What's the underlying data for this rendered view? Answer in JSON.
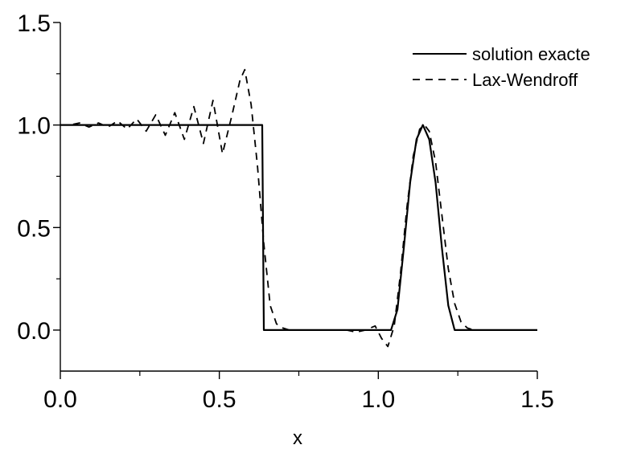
{
  "chart_data": {
    "type": "line",
    "title": "",
    "xlabel": "x",
    "ylabel": "",
    "xlim": [
      0.0,
      1.5
    ],
    "ylim": [
      -0.2,
      1.5
    ],
    "xticks": [
      "0.0",
      "0.5",
      "1.0",
      "1.5"
    ],
    "yticks": [
      "0.0",
      "0.5",
      "1.0",
      "1.5"
    ],
    "grid": false,
    "legend_position": "top-right",
    "series": [
      {
        "name": "solution exacte",
        "style": "solid",
        "color": "#000000",
        "x": [
          0.0,
          0.635,
          0.64,
          1.04,
          1.06,
          1.08,
          1.1,
          1.12,
          1.14,
          1.16,
          1.18,
          1.2,
          1.22,
          1.24,
          1.5
        ],
        "y": [
          1.0,
          1.0,
          0.0,
          0.0,
          0.1,
          0.4,
          0.72,
          0.93,
          1.0,
          0.93,
          0.72,
          0.4,
          0.12,
          0.0,
          0.0
        ]
      },
      {
        "name": "Lax-Wendroff",
        "style": "dashed",
        "color": "#000000",
        "x": [
          0.0,
          0.03,
          0.06,
          0.09,
          0.12,
          0.15,
          0.18,
          0.21,
          0.24,
          0.27,
          0.3,
          0.33,
          0.36,
          0.39,
          0.42,
          0.45,
          0.48,
          0.51,
          0.54,
          0.565,
          0.58,
          0.6,
          0.62,
          0.64,
          0.66,
          0.68,
          0.7,
          0.72,
          0.75,
          0.8,
          0.85,
          0.9,
          0.93,
          0.96,
          0.99,
          1.01,
          1.03,
          1.05,
          1.07,
          1.09,
          1.11,
          1.13,
          1.145,
          1.16,
          1.18,
          1.2,
          1.22,
          1.24,
          1.26,
          1.28,
          1.3,
          1.35,
          1.4,
          1.5
        ],
        "y": [
          1.0,
          1.0,
          1.01,
          0.99,
          1.01,
          0.99,
          1.02,
          0.98,
          1.03,
          0.97,
          1.05,
          0.95,
          1.06,
          0.93,
          1.09,
          0.91,
          1.12,
          0.86,
          1.05,
          1.22,
          1.27,
          1.1,
          0.8,
          0.42,
          0.12,
          0.03,
          0.01,
          0.0,
          0.0,
          0.0,
          0.0,
          0.0,
          -0.01,
          0.0,
          0.02,
          -0.04,
          -0.08,
          0.02,
          0.28,
          0.6,
          0.85,
          0.98,
          1.0,
          0.97,
          0.82,
          0.56,
          0.3,
          0.13,
          0.04,
          0.01,
          0.0,
          0.0,
          0.0,
          0.0
        ]
      }
    ]
  }
}
